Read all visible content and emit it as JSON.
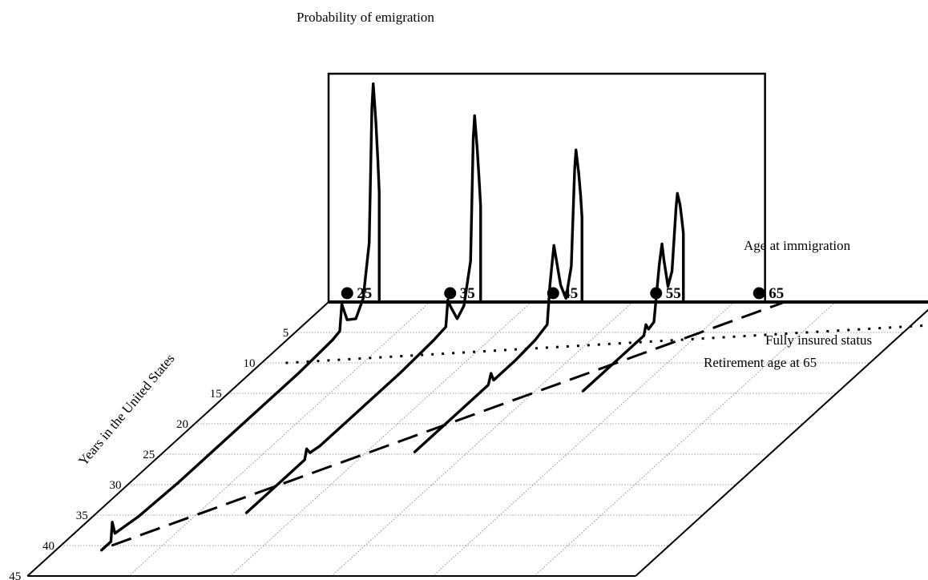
{
  "chart_data": {
    "type": "line",
    "title": "Probability of emigration",
    "xlabel": "Age at immigration",
    "ylabel": "Years in the United States",
    "zlabel": "Probability of emigration",
    "age_at_immigration_ticks": [
      "25",
      "35",
      "45",
      "55",
      "65"
    ],
    "years_ticks": [
      "5",
      "10",
      "15",
      "20",
      "25",
      "30",
      "35",
      "40",
      "45"
    ],
    "years_range": [
      0,
      45
    ],
    "grid": true,
    "annotations": {
      "fully_insured": "Fully insured status",
      "retirement": "Retirement age at 65"
    },
    "reference_lines": {
      "fully_insured_years": 10,
      "retirement_age": 65
    },
    "series": [
      {
        "age": 25,
        "points": [
          [
            0,
            0.48
          ],
          [
            0.2,
            0.62
          ],
          [
            0.5,
            0.8
          ],
          [
            0.9,
            0.98
          ],
          [
            1.1,
            0.88
          ],
          [
            1.5,
            0.3
          ],
          [
            2.4,
            0.08
          ],
          [
            3.5,
            0.02
          ],
          [
            4.8,
            0.05
          ],
          [
            5.6,
            0.14
          ],
          [
            5.9,
            0.03
          ],
          [
            7,
            0.02
          ],
          [
            12,
            0.01
          ],
          [
            20,
            0.01
          ],
          [
            30,
            0.01
          ],
          [
            36,
            0.02
          ],
          [
            39.5,
            0.04
          ],
          [
            39.9,
            0.1
          ],
          [
            40.1,
            0.02
          ],
          [
            41.5,
            0.02
          ]
        ]
      },
      {
        "age": 35,
        "points": [
          [
            0,
            0.42
          ],
          [
            0.2,
            0.53
          ],
          [
            0.5,
            0.68
          ],
          [
            0.9,
            0.84
          ],
          [
            1.1,
            0.75
          ],
          [
            1.5,
            0.22
          ],
          [
            2.5,
            0.05
          ],
          [
            3.5,
            0.02
          ],
          [
            4.5,
            0.1
          ],
          [
            4.9,
            0.14
          ],
          [
            5.2,
            0.03
          ],
          [
            7,
            0.02
          ],
          [
            12,
            0.01
          ],
          [
            18,
            0.01
          ],
          [
            24,
            0.01
          ],
          [
            25.5,
            0.02
          ],
          [
            26,
            0.05
          ],
          [
            26.3,
            0.01
          ],
          [
            27,
            0.01
          ],
          [
            35,
            0.01
          ]
        ]
      },
      {
        "age": 45,
        "points": [
          [
            0,
            0.37
          ],
          [
            0.2,
            0.47
          ],
          [
            0.5,
            0.58
          ],
          [
            0.9,
            0.69
          ],
          [
            1.1,
            0.61
          ],
          [
            1.6,
            0.2
          ],
          [
            2.4,
            0.08
          ],
          [
            3.2,
            0.16
          ],
          [
            4.2,
            0.36
          ],
          [
            4.8,
            0.2
          ],
          [
            5.2,
            0.04
          ],
          [
            7,
            0.02
          ],
          [
            10,
            0.01
          ],
          [
            13.2,
            0.01
          ],
          [
            13.6,
            0.05
          ],
          [
            14,
            0.01
          ],
          [
            16,
            0.01
          ],
          [
            22,
            0.01
          ],
          [
            25,
            0.01
          ]
        ]
      },
      {
        "age": 55,
        "points": [
          [
            0,
            0.3
          ],
          [
            0.2,
            0.36
          ],
          [
            0.5,
            0.44
          ],
          [
            0.9,
            0.5
          ],
          [
            1.1,
            0.44
          ],
          [
            1.7,
            0.18
          ],
          [
            2.3,
            0.13
          ],
          [
            2.9,
            0.26
          ],
          [
            3.2,
            0.34
          ],
          [
            3.6,
            0.26
          ],
          [
            4.4,
            0.03
          ],
          [
            5.2,
            0.02
          ],
          [
            5.6,
            0.05
          ],
          [
            5.9,
            0.01
          ],
          [
            8,
            0.01
          ],
          [
            12,
            0.01
          ],
          [
            15,
            0.01
          ]
        ]
      },
      {
        "age": 65,
        "points": []
      }
    ]
  }
}
